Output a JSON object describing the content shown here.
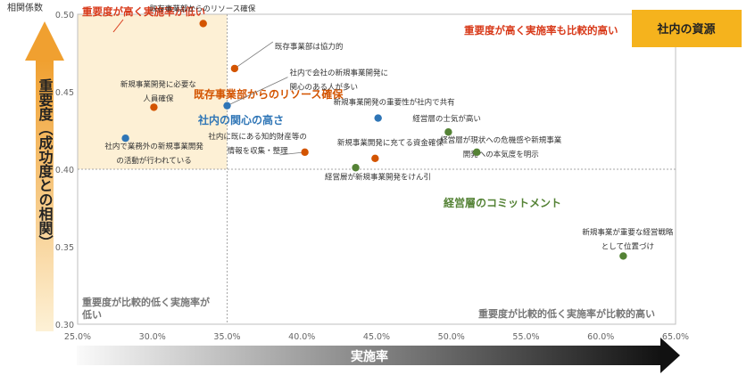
{
  "chart_data": {
    "type": "scatter",
    "ylabel_top": "相関係数",
    "ylabel": "重要度（成功度との相関）",
    "xlabel": "実施率",
    "xlim": [
      0.25,
      0.65
    ],
    "ylim": [
      0.3,
      0.5
    ],
    "xticks": [
      "25.0%",
      "30.0%",
      "35.0%",
      "40.0%",
      "45.0%",
      "50.0%",
      "55.0%",
      "60.0%",
      "65.0%"
    ],
    "yticks": [
      "0.30",
      "0.35",
      "0.40",
      "0.45",
      "0.50"
    ],
    "divider_x": 0.35,
    "divider_y": 0.4,
    "quadrant_labels": {
      "top_left": "重要度が高く実施率が低い",
      "top_right": "重要度が高く実施率も比較的高い",
      "bottom_left_1": "重要度が比較的低く実施率が",
      "bottom_left_2": "低い",
      "bottom_right": "重要度が比較的低く実施率が比較的高い"
    },
    "badge": "社内の資源",
    "groups": [
      {
        "key": "orange",
        "name": "既存事業部からのリソース確保",
        "color": "#D35400"
      },
      {
        "key": "blue",
        "name": "社内の関心の高さ",
        "color": "#2E75B6"
      },
      {
        "key": "green",
        "name": "経営層のコミットメント",
        "color": "#548235"
      }
    ],
    "points": [
      {
        "group": "orange",
        "x": 0.334,
        "y": 0.494,
        "label": [
          "既存事業部からのリソース確保"
        ]
      },
      {
        "group": "orange",
        "x": 0.355,
        "y": 0.465,
        "label": [
          "既存事業部は協力的"
        ]
      },
      {
        "group": "orange",
        "x": 0.301,
        "y": 0.44,
        "label": [
          "新規事業開発に必要な",
          "人員確保"
        ]
      },
      {
        "group": "orange",
        "x": 0.402,
        "y": 0.411,
        "label": [
          "社内に既にある知的財産等の",
          "情報を収集・整理"
        ]
      },
      {
        "group": "orange",
        "x": 0.449,
        "y": 0.407,
        "label": [
          "新規事業開発に充てる資金確保"
        ]
      },
      {
        "group": "blue",
        "x": 0.35,
        "y": 0.441,
        "label": [
          "社内で会社の新規事業開発に",
          "関心のある人が多い"
        ]
      },
      {
        "group": "blue",
        "x": 0.282,
        "y": 0.42,
        "label": [
          "社内で業務外の新規事業開発",
          "の活動が行われている"
        ]
      },
      {
        "group": "blue",
        "x": 0.451,
        "y": 0.433,
        "label": [
          "新規事業開発の重要性が社内で共有"
        ]
      },
      {
        "group": "green",
        "x": 0.498,
        "y": 0.424,
        "label": [
          "経営層の士気が高い"
        ]
      },
      {
        "group": "green",
        "x": 0.517,
        "y": 0.411,
        "label": [
          "経営層が現状への危機感や新規事業",
          "開発への本気度を明示"
        ]
      },
      {
        "group": "green",
        "x": 0.436,
        "y": 0.401,
        "label": [
          "経営層が新規事業開発をけん引"
        ]
      },
      {
        "group": "green",
        "x": 0.615,
        "y": 0.344,
        "label": [
          "新規事業が重要な経営戦略",
          "として位置づけ"
        ]
      }
    ]
  }
}
